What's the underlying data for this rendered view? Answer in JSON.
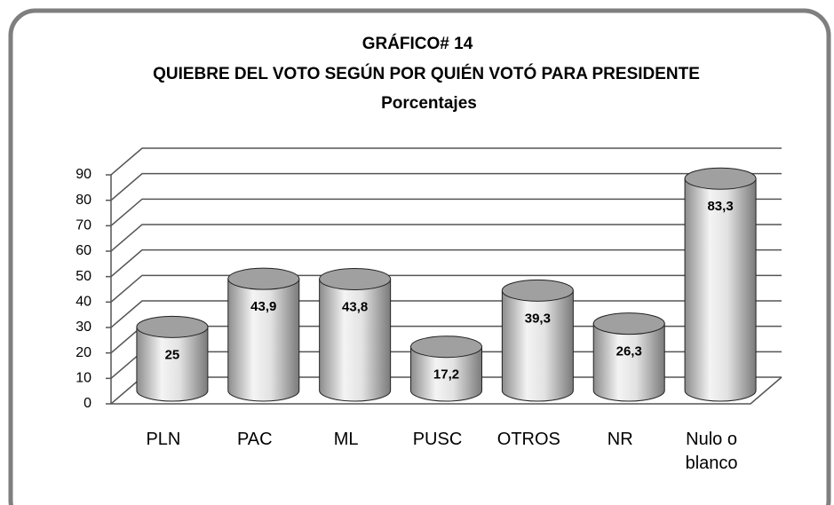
{
  "chart_data": {
    "type": "cylinder-bar",
    "title": "GRÁFICO# 14",
    "subtitle": "QUIEBRE DEL VOTO SEGÚN POR QUIÉN VOTÓ PARA PRESIDENTE",
    "unit_note": "Porcentajes",
    "categories": [
      "PLN",
      "PAC",
      "ML",
      "PUSC",
      "OTROS",
      "NR",
      "Nulo o blanco"
    ],
    "values": [
      25,
      43.9,
      43.8,
      17.2,
      39.3,
      26.3,
      83.3
    ],
    "value_labels": [
      "25",
      "43,9",
      "43,8",
      "17,2",
      "39,3",
      "26,3",
      "83,3"
    ],
    "color": "#a0a0a0",
    "ylim": [
      0,
      90
    ],
    "yticks": [
      0,
      10,
      20,
      30,
      40,
      50,
      60,
      70,
      80,
      90
    ],
    "grid": true
  }
}
